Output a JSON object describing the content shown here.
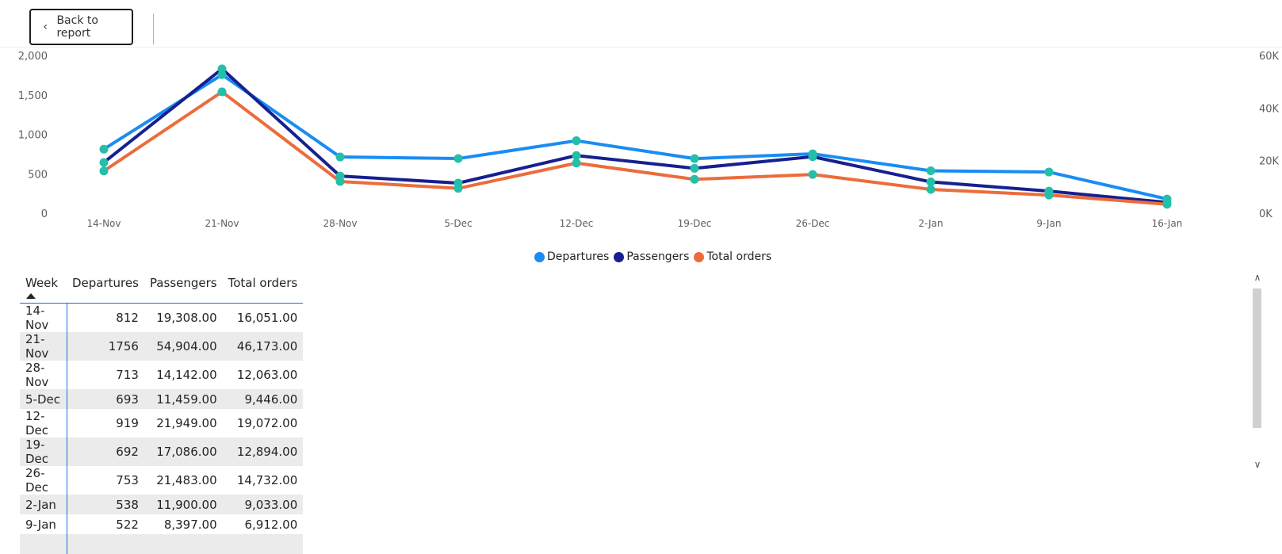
{
  "topbar": {
    "back_label": "Back to report"
  },
  "icons": {
    "back": "chevron-left-icon",
    "scroll_up": "chevron-up-icon",
    "scroll_down": "chevron-down-icon"
  },
  "colors": {
    "departures": "#1a8cf3",
    "passengers": "#16208f",
    "total_orders": "#ec6c3c",
    "markers": "#23bfa8"
  },
  "chart_data": {
    "type": "line",
    "categories": [
      "14-Nov",
      "21-Nov",
      "28-Nov",
      "5-Dec",
      "12-Dec",
      "19-Dec",
      "26-Dec",
      "2-Jan",
      "9-Jan",
      "16-Jan"
    ],
    "y_left": {
      "ticks": [
        "0",
        "500",
        "1,000",
        "1,500",
        "2,000"
      ],
      "ylim": [
        0,
        2000
      ]
    },
    "y_right": {
      "ticks": [
        "0K",
        "20K",
        "40K",
        "60K"
      ],
      "ylim": [
        0,
        60000
      ]
    },
    "series": [
      {
        "name": "Departures",
        "axis": "left",
        "values": [
          812,
          1756,
          713,
          693,
          919,
          692,
          753,
          538,
          522,
          180
        ]
      },
      {
        "name": "Passengers",
        "axis": "right",
        "values": [
          19308,
          54904,
          14142,
          11459,
          21949,
          17086,
          21483,
          11900,
          8397,
          4100
        ]
      },
      {
        "name": "Total orders",
        "axis": "right",
        "values": [
          16051,
          46173,
          12063,
          9446,
          19072,
          12894,
          14732,
          9033,
          6912,
          3400
        ]
      }
    ],
    "legend": "bottom-center",
    "grid": false
  },
  "table": {
    "columns": [
      "Week",
      "Departures",
      "Passengers",
      "Total orders"
    ],
    "rows": [
      [
        "14-Nov",
        "812",
        "19,308.00",
        "16,051.00"
      ],
      [
        "21-Nov",
        "1756",
        "54,904.00",
        "46,173.00"
      ],
      [
        "28-Nov",
        "713",
        "14,142.00",
        "12,063.00"
      ],
      [
        "5-Dec",
        "693",
        "11,459.00",
        "9,446.00"
      ],
      [
        "12-Dec",
        "919",
        "21,949.00",
        "19,072.00"
      ],
      [
        "19-Dec",
        "692",
        "17,086.00",
        "12,894.00"
      ],
      [
        "26-Dec",
        "753",
        "21,483.00",
        "14,732.00"
      ],
      [
        "2-Jan",
        "538",
        "11,900.00",
        "9,033.00"
      ],
      [
        "9-Jan",
        "522",
        "8,397.00",
        "6,912.00"
      ]
    ]
  }
}
